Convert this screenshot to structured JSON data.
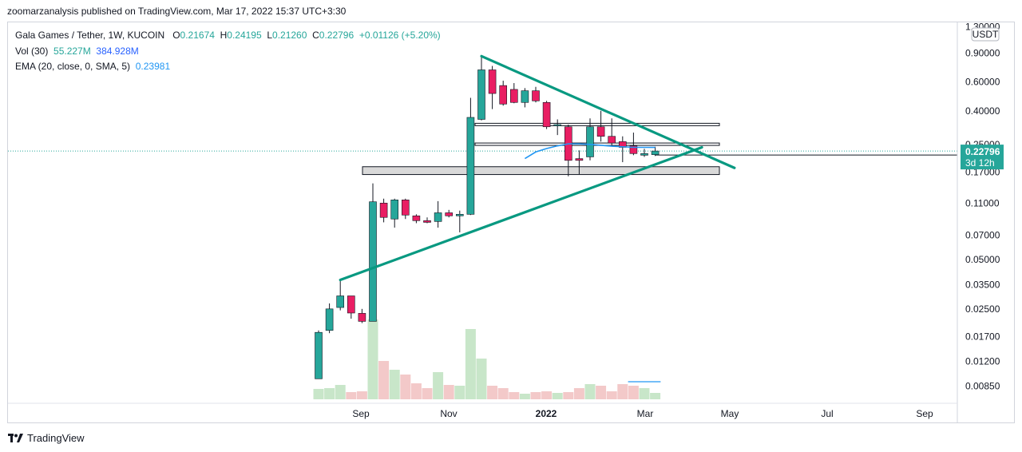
{
  "header": {
    "publisher_line": "zoomarzanalysis published on TradingView.com, Mar 17, 2022 15:37 UTC+3:30"
  },
  "legend": {
    "symbol": "Gala Games / Tether, 1W, KUCOIN",
    "ohlc": {
      "o_label": "O",
      "o": "0.21674",
      "h_label": "H",
      "h": "0.24195",
      "l_label": "L",
      "l": "0.21260",
      "c_label": "C",
      "c": "0.22796",
      "change": "+0.01126 (+5.20%)"
    },
    "vol": {
      "label": "Vol (30)",
      "value": "55.227M",
      "ma": "384.928M"
    },
    "ema": {
      "label": "EMA (20, close, 0, SMA, 5)",
      "value": "0.23981"
    }
  },
  "price_axis": {
    "currency": "USDT",
    "ticks": [
      "1.30000",
      "0.90000",
      "0.60000",
      "0.40000",
      "0.25000",
      "0.17000",
      "0.11000",
      "0.07000",
      "0.05000",
      "0.03500",
      "0.02500",
      "0.01700",
      "0.01200",
      "0.00850"
    ],
    "last_price": "0.22796",
    "countdown": "3d 12h"
  },
  "time_axis": {
    "labels": [
      "Sep",
      "Nov",
      "2022",
      "Mar",
      "May",
      "Jul",
      "Sep"
    ]
  },
  "footer": {
    "brand": "TradingView"
  },
  "colors": {
    "up": "#26a69a",
    "down": "#ef5350",
    "candle_down": "#e91e63",
    "trend": "#089981",
    "ema": "#2196f3",
    "vol_up": "#c8e6c9",
    "vol_down": "#f3c9c9"
  },
  "chart_data": {
    "type": "candlestick",
    "scale": "log",
    "interval": "1W",
    "ylim": [
      0.0078,
      1.35
    ],
    "candles": [
      {
        "o": 0.0094,
        "h": 0.0185,
        "l": 0.0094,
        "c": 0.018
      },
      {
        "o": 0.0185,
        "h": 0.027,
        "l": 0.0178,
        "c": 0.025
      },
      {
        "o": 0.0255,
        "h": 0.037,
        "l": 0.0245,
        "c": 0.03
      },
      {
        "o": 0.03,
        "h": 0.03,
        "l": 0.0218,
        "c": 0.0236
      },
      {
        "o": 0.0235,
        "h": 0.025,
        "l": 0.0205,
        "c": 0.021
      },
      {
        "o": 0.021,
        "h": 0.145,
        "l": 0.021,
        "c": 0.112
      },
      {
        "o": 0.11,
        "h": 0.117,
        "l": 0.084,
        "c": 0.09
      },
      {
        "o": 0.088,
        "h": 0.117,
        "l": 0.078,
        "c": 0.115
      },
      {
        "o": 0.115,
        "h": 0.117,
        "l": 0.088,
        "c": 0.093
      },
      {
        "o": 0.092,
        "h": 0.094,
        "l": 0.083,
        "c": 0.086
      },
      {
        "o": 0.086,
        "h": 0.09,
        "l": 0.083,
        "c": 0.084
      },
      {
        "o": 0.085,
        "h": 0.113,
        "l": 0.078,
        "c": 0.096
      },
      {
        "o": 0.096,
        "h": 0.1,
        "l": 0.09,
        "c": 0.092
      },
      {
        "o": 0.092,
        "h": 0.099,
        "l": 0.073,
        "c": 0.094
      },
      {
        "o": 0.094,
        "h": 0.48,
        "l": 0.093,
        "c": 0.365
      },
      {
        "o": 0.355,
        "h": 0.86,
        "l": 0.35,
        "c": 0.71
      },
      {
        "o": 0.71,
        "h": 0.75,
        "l": 0.41,
        "c": 0.51
      },
      {
        "o": 0.57,
        "h": 0.61,
        "l": 0.43,
        "c": 0.44
      },
      {
        "o": 0.54,
        "h": 0.59,
        "l": 0.445,
        "c": 0.45
      },
      {
        "o": 0.45,
        "h": 0.55,
        "l": 0.42,
        "c": 0.53
      },
      {
        "o": 0.53,
        "h": 0.56,
        "l": 0.45,
        "c": 0.46
      },
      {
        "o": 0.45,
        "h": 0.46,
        "l": 0.31,
        "c": 0.32
      },
      {
        "o": 0.33,
        "h": 0.355,
        "l": 0.285,
        "c": 0.33
      },
      {
        "o": 0.32,
        "h": 0.33,
        "l": 0.16,
        "c": 0.2
      },
      {
        "o": 0.205,
        "h": 0.23,
        "l": 0.165,
        "c": 0.2
      },
      {
        "o": 0.21,
        "h": 0.36,
        "l": 0.2,
        "c": 0.32
      },
      {
        "o": 0.32,
        "h": 0.4,
        "l": 0.26,
        "c": 0.28
      },
      {
        "o": 0.28,
        "h": 0.36,
        "l": 0.245,
        "c": 0.255
      },
      {
        "o": 0.26,
        "h": 0.28,
        "l": 0.195,
        "c": 0.24
      },
      {
        "o": 0.245,
        "h": 0.295,
        "l": 0.215,
        "c": 0.22
      },
      {
        "o": 0.215,
        "h": 0.235,
        "l": 0.21,
        "c": 0.22
      },
      {
        "o": 0.2167,
        "h": 0.242,
        "l": 0.2126,
        "c": 0.228
      }
    ],
    "volume_ma": 384.928,
    "volume": [
      13,
      14,
      18,
      9,
      10,
      100,
      48,
      37,
      31,
      20,
      14,
      34,
      18,
      17,
      88,
      51,
      17,
      14,
      9,
      7,
      9,
      10,
      8,
      9,
      14,
      19,
      17,
      10,
      19,
      17,
      14,
      8
    ],
    "ema": [
      null,
      null,
      null,
      null,
      null,
      null,
      null,
      null,
      null,
      null,
      null,
      null,
      null,
      null,
      null,
      null,
      null,
      null,
      null,
      0.205,
      0.225,
      0.236,
      0.245,
      0.252,
      0.252,
      0.25,
      0.247,
      0.244,
      0.242,
      0.24,
      0.24,
      0.2398
    ],
    "levels": [
      {
        "type": "zone",
        "top": 0.183,
        "bottom": 0.164
      },
      {
        "type": "zone",
        "top": 0.336,
        "bottom": 0.326
      },
      {
        "type": "zone",
        "top": 0.255,
        "bottom": 0.247
      },
      {
        "type": "horizontal-line",
        "value": 0.2279
      }
    ],
    "trendlines": [
      {
        "from": {
          "i": 15,
          "p": 0.86
        },
        "to": {
          "i": 38.3,
          "p": 0.18
        }
      },
      {
        "from": {
          "i": 2,
          "p": 0.0375
        },
        "to": {
          "i": 35.3,
          "p": 0.24
        }
      }
    ]
  }
}
